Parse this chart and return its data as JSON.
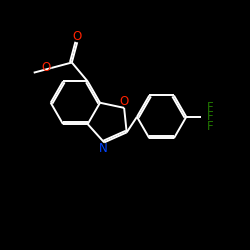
{
  "background_color": "#000000",
  "line_color": "#ffffff",
  "atom_colors": {
    "O": "#ff2200",
    "N": "#0044ff",
    "F": "#227700",
    "C": "#ffffff"
  },
  "fontsize": 8.5
}
